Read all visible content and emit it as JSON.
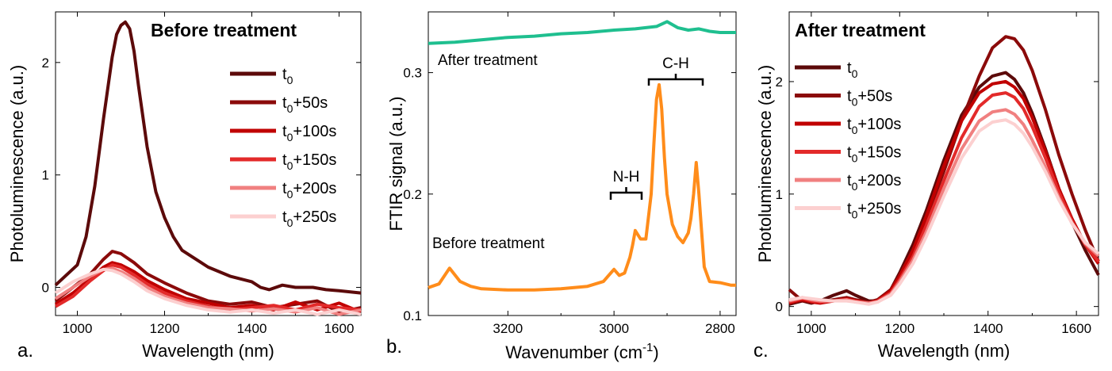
{
  "chart_data": [
    {
      "panel": "a.",
      "type": "line",
      "title": "Before treatment",
      "xlabel": "Wavelength (nm)",
      "ylabel": "Photoluminescence (a.u.)",
      "xlim": [
        950,
        1650
      ],
      "ylim": [
        -0.25,
        2.45
      ],
      "xticks": [
        1000,
        1200,
        1400,
        1600
      ],
      "yticks": [
        0,
        1,
        2
      ],
      "legend_position": "right",
      "series": [
        {
          "name": "t0",
          "sub": "0",
          "suffix": "",
          "color": "#5c0a0a",
          "x": [
            950,
            1000,
            1020,
            1040,
            1060,
            1080,
            1090,
            1100,
            1110,
            1120,
            1130,
            1140,
            1160,
            1180,
            1200,
            1220,
            1240,
            1260,
            1300,
            1350,
            1400,
            1420,
            1440,
            1470,
            1500,
            1540,
            1570,
            1600,
            1650
          ],
          "y": [
            0.02,
            0.2,
            0.45,
            0.9,
            1.5,
            2.05,
            2.25,
            2.33,
            2.36,
            2.3,
            2.1,
            1.8,
            1.25,
            0.85,
            0.62,
            0.45,
            0.33,
            0.28,
            0.18,
            0.1,
            0.05,
            0.0,
            -0.02,
            0.02,
            0.0,
            0.0,
            -0.02,
            -0.03,
            -0.05
          ]
        },
        {
          "name": "t0+50s",
          "sub": "0",
          "suffix": "+50s",
          "color": "#8b0a0a",
          "x": [
            950,
            990,
            1030,
            1060,
            1080,
            1100,
            1130,
            1160,
            1200,
            1250,
            1300,
            1350,
            1400,
            1450,
            1500,
            1550,
            1600,
            1650
          ],
          "y": [
            -0.12,
            0.0,
            0.12,
            0.25,
            0.32,
            0.3,
            0.22,
            0.12,
            0.04,
            -0.05,
            -0.12,
            -0.15,
            -0.13,
            -0.18,
            -0.15,
            -0.12,
            -0.22,
            -0.18
          ]
        },
        {
          "name": "t0+100s",
          "sub": "0",
          "suffix": "+100s",
          "color": "#c00000",
          "x": [
            950,
            990,
            1030,
            1060,
            1080,
            1100,
            1130,
            1160,
            1200,
            1250,
            1300,
            1350,
            1400,
            1450,
            1500,
            1550,
            1600,
            1650
          ],
          "y": [
            -0.15,
            -0.05,
            0.08,
            0.18,
            0.22,
            0.2,
            0.14,
            0.06,
            -0.02,
            -0.1,
            -0.14,
            -0.18,
            -0.16,
            -0.2,
            -0.13,
            -0.2,
            -0.14,
            -0.22
          ]
        },
        {
          "name": "t0+150s",
          "sub": "0",
          "suffix": "+150s",
          "color": "#e32a2a",
          "x": [
            950,
            990,
            1030,
            1060,
            1080,
            1100,
            1130,
            1160,
            1200,
            1250,
            1300,
            1350,
            1400,
            1450,
            1500,
            1550,
            1600,
            1650
          ],
          "y": [
            -0.17,
            -0.08,
            0.06,
            0.15,
            0.2,
            0.18,
            0.11,
            0.03,
            -0.05,
            -0.12,
            -0.17,
            -0.2,
            -0.18,
            -0.16,
            -0.2,
            -0.15,
            -0.18,
            -0.2
          ]
        },
        {
          "name": "t0+200s",
          "sub": "0",
          "suffix": "+200s",
          "color": "#f08080",
          "x": [
            950,
            990,
            1030,
            1060,
            1080,
            1100,
            1130,
            1160,
            1200,
            1250,
            1300,
            1350,
            1400,
            1450,
            1500,
            1550,
            1600,
            1650
          ],
          "y": [
            -0.1,
            0.0,
            0.1,
            0.16,
            0.17,
            0.14,
            0.08,
            0.0,
            -0.08,
            -0.14,
            -0.18,
            -0.19,
            -0.21,
            -0.19,
            -0.22,
            -0.18,
            -0.24,
            -0.2
          ]
        },
        {
          "name": "t0+250s",
          "sub": "0",
          "suffix": "+250s",
          "color": "#fcd0d0",
          "x": [
            950,
            990,
            1030,
            1060,
            1080,
            1100,
            1130,
            1160,
            1200,
            1250,
            1300,
            1350,
            1400,
            1450,
            1500,
            1550,
            1600,
            1650
          ],
          "y": [
            -0.05,
            0.05,
            0.12,
            0.16,
            0.15,
            0.12,
            0.05,
            -0.03,
            -0.1,
            -0.16,
            -0.2,
            -0.22,
            -0.2,
            -0.23,
            -0.2,
            -0.24,
            -0.2,
            -0.24
          ]
        }
      ]
    },
    {
      "panel": "b.",
      "type": "line",
      "xlabel": "Wavenumber (cm",
      "xlabel_sup": "-1",
      "xlabel_end": ")",
      "ylabel": "FTIR signal (a.u.)",
      "xlim": [
        3350,
        2770
      ],
      "ylim": [
        0.1,
        0.35
      ],
      "xticks": [
        3200,
        3000,
        2800
      ],
      "yticks": [
        0.1,
        0.2,
        0.3
      ],
      "y_tick_labels": [
        "0.1",
        "0.2",
        "0.3"
      ],
      "series": [
        {
          "name": "After treatment",
          "color": "#1fbf8f",
          "x": [
            3350,
            3300,
            3250,
            3200,
            3150,
            3100,
            3050,
            3000,
            2960,
            2920,
            2900,
            2880,
            2860,
            2840,
            2820,
            2800,
            2770
          ],
          "y": [
            0.324,
            0.325,
            0.327,
            0.329,
            0.33,
            0.332,
            0.333,
            0.335,
            0.336,
            0.338,
            0.342,
            0.337,
            0.335,
            0.336,
            0.334,
            0.333,
            0.333
          ]
        },
        {
          "name": "Before treatment",
          "color": "#ff8c1a",
          "x": [
            3350,
            3330,
            3310,
            3290,
            3270,
            3250,
            3200,
            3150,
            3100,
            3050,
            3020,
            3010,
            3000,
            2990,
            2980,
            2970,
            2965,
            2960,
            2950,
            2940,
            2930,
            2925,
            2920,
            2915,
            2910,
            2905,
            2900,
            2890,
            2880,
            2870,
            2860,
            2855,
            2850,
            2845,
            2840,
            2835,
            2830,
            2820,
            2800,
            2780,
            2770
          ],
          "y": [
            0.123,
            0.126,
            0.139,
            0.128,
            0.124,
            0.122,
            0.121,
            0.121,
            0.122,
            0.124,
            0.128,
            0.133,
            0.138,
            0.133,
            0.135,
            0.148,
            0.158,
            0.17,
            0.163,
            0.163,
            0.2,
            0.24,
            0.278,
            0.29,
            0.27,
            0.23,
            0.2,
            0.175,
            0.165,
            0.16,
            0.168,
            0.18,
            0.2,
            0.226,
            0.2,
            0.17,
            0.14,
            0.128,
            0.127,
            0.125,
            0.125
          ]
        }
      ],
      "annotations": {
        "ch": "C-H",
        "nh": "N-H"
      }
    },
    {
      "panel": "c.",
      "type": "line",
      "title": "After treatment",
      "xlabel": "Wavelength (nm)",
      "ylabel": "Photoluminescence (a.u.)",
      "xlim": [
        950,
        1650
      ],
      "ylim": [
        -0.08,
        2.62
      ],
      "xticks": [
        1000,
        1200,
        1400,
        1600
      ],
      "yticks": [
        0,
        1,
        2
      ],
      "legend_position": "left",
      "series": [
        {
          "name": "t0",
          "sub": "0",
          "suffix": "",
          "color": "#5c0a0a",
          "x": [
            950,
            980,
            1000,
            1020,
            1050,
            1080,
            1100,
            1130,
            1150,
            1180,
            1200,
            1230,
            1260,
            1300,
            1340,
            1380,
            1410,
            1440,
            1460,
            1480,
            1500,
            1530,
            1560,
            1590,
            1620,
            1650
          ],
          "y": [
            0.02,
            0.05,
            0.03,
            0.05,
            0.1,
            0.14,
            0.1,
            0.05,
            0.05,
            0.15,
            0.3,
            0.55,
            0.85,
            1.3,
            1.7,
            1.95,
            2.05,
            2.08,
            2.02,
            1.9,
            1.72,
            1.4,
            1.05,
            0.75,
            0.5,
            0.28
          ]
        },
        {
          "name": "t0+50s",
          "sub": "0",
          "suffix": "+50s",
          "color": "#8b0a0a",
          "x": [
            950,
            980,
            1000,
            1020,
            1050,
            1080,
            1100,
            1130,
            1150,
            1180,
            1200,
            1230,
            1260,
            1300,
            1340,
            1380,
            1410,
            1440,
            1460,
            1480,
            1500,
            1530,
            1560,
            1590,
            1620,
            1650
          ],
          "y": [
            0.15,
            0.05,
            0.05,
            0.04,
            0.06,
            0.08,
            0.06,
            0.04,
            0.06,
            0.15,
            0.28,
            0.5,
            0.78,
            1.2,
            1.65,
            2.05,
            2.3,
            2.4,
            2.38,
            2.28,
            2.1,
            1.75,
            1.35,
            1.0,
            0.68,
            0.4
          ]
        },
        {
          "name": "t0+100s",
          "sub": "0",
          "suffix": "+100s",
          "color": "#c00000",
          "x": [
            950,
            980,
            1000,
            1020,
            1050,
            1080,
            1100,
            1130,
            1150,
            1180,
            1200,
            1230,
            1260,
            1300,
            1340,
            1380,
            1410,
            1440,
            1460,
            1480,
            1500,
            1530,
            1560,
            1590,
            1620,
            1650
          ],
          "y": [
            0.03,
            0.06,
            0.04,
            0.03,
            0.05,
            0.07,
            0.05,
            0.03,
            0.05,
            0.14,
            0.27,
            0.5,
            0.8,
            1.25,
            1.65,
            1.9,
            1.98,
            2.0,
            1.95,
            1.85,
            1.68,
            1.38,
            1.05,
            0.78,
            0.55,
            0.38
          ]
        },
        {
          "name": "t0+150s",
          "sub": "0",
          "suffix": "+150s",
          "color": "#e32a2a",
          "x": [
            950,
            980,
            1000,
            1020,
            1050,
            1080,
            1100,
            1130,
            1150,
            1180,
            1200,
            1230,
            1260,
            1300,
            1340,
            1380,
            1410,
            1440,
            1460,
            1480,
            1500,
            1530,
            1560,
            1590,
            1620,
            1650
          ],
          "y": [
            0.04,
            0.07,
            0.05,
            0.04,
            0.05,
            0.06,
            0.05,
            0.03,
            0.05,
            0.12,
            0.24,
            0.44,
            0.72,
            1.12,
            1.5,
            1.78,
            1.88,
            1.9,
            1.86,
            1.76,
            1.6,
            1.32,
            1.02,
            0.76,
            0.55,
            0.4
          ]
        },
        {
          "name": "t0+200s",
          "sub": "0",
          "suffix": "+200s",
          "color": "#f08080",
          "x": [
            950,
            980,
            1000,
            1020,
            1050,
            1080,
            1100,
            1130,
            1150,
            1180,
            1200,
            1230,
            1260,
            1300,
            1340,
            1380,
            1410,
            1440,
            1460,
            1480,
            1500,
            1530,
            1560,
            1590,
            1620,
            1650
          ],
          "y": [
            0.05,
            0.08,
            0.06,
            0.05,
            0.05,
            0.06,
            0.04,
            0.03,
            0.04,
            0.11,
            0.22,
            0.41,
            0.66,
            1.05,
            1.4,
            1.65,
            1.73,
            1.75,
            1.71,
            1.62,
            1.48,
            1.24,
            0.97,
            0.74,
            0.56,
            0.45
          ]
        },
        {
          "name": "t0+250s",
          "sub": "0",
          "suffix": "+250s",
          "color": "#fcd0d0",
          "x": [
            950,
            980,
            1000,
            1020,
            1050,
            1080,
            1100,
            1130,
            1150,
            1180,
            1200,
            1230,
            1260,
            1300,
            1340,
            1380,
            1410,
            1440,
            1460,
            1480,
            1500,
            1530,
            1560,
            1590,
            1620,
            1650
          ],
          "y": [
            0.06,
            0.08,
            0.07,
            0.06,
            0.05,
            0.05,
            0.04,
            0.02,
            0.04,
            0.1,
            0.2,
            0.38,
            0.62,
            0.98,
            1.32,
            1.56,
            1.64,
            1.66,
            1.62,
            1.54,
            1.42,
            1.2,
            0.95,
            0.74,
            0.57,
            0.47
          ]
        }
      ]
    }
  ]
}
